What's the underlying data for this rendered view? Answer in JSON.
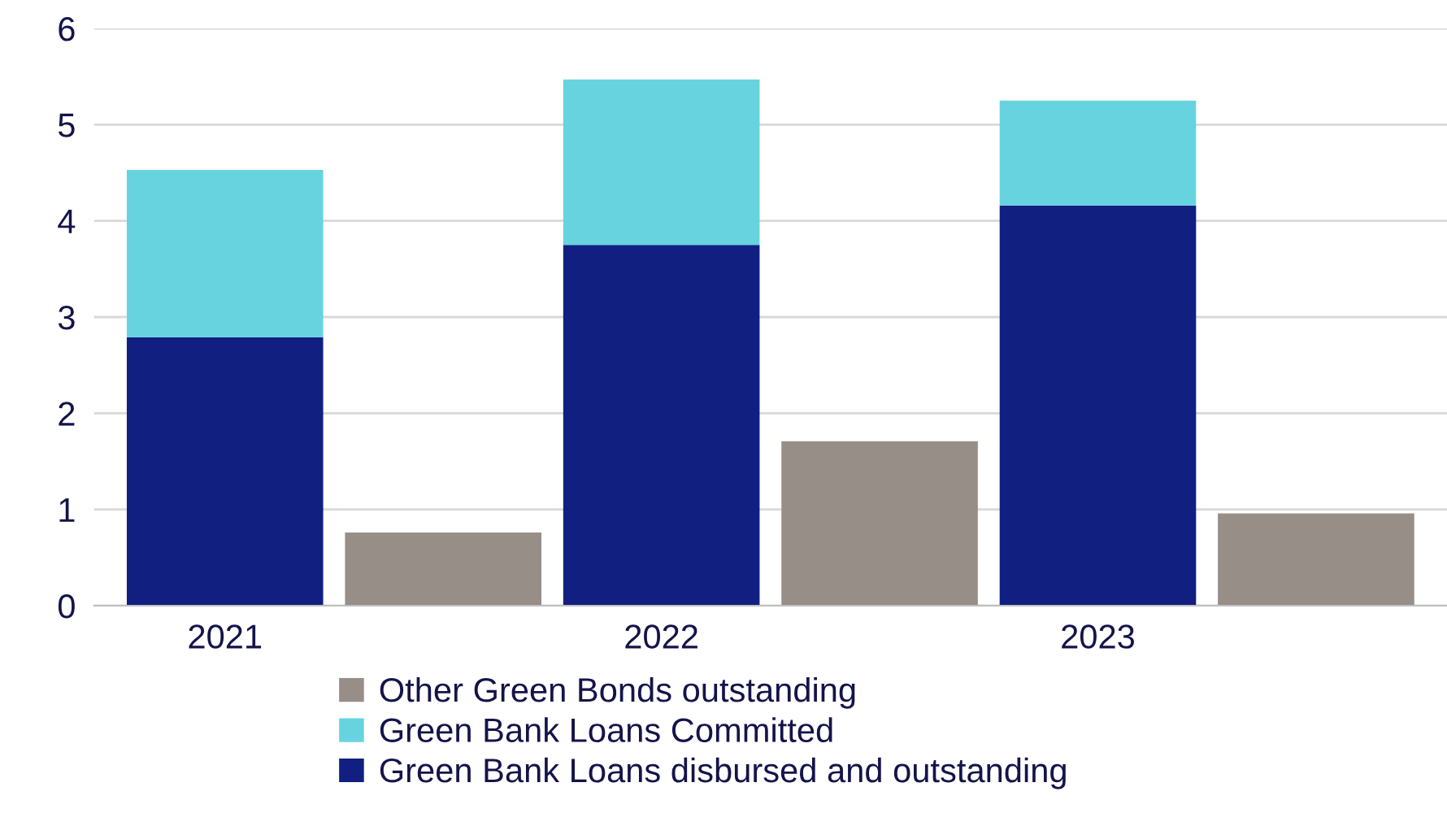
{
  "chart_data": {
    "type": "bar",
    "stacked": true,
    "categories": [
      "2021",
      null,
      "2022",
      null,
      "2023",
      null
    ],
    "series": [
      {
        "name": "Green Bank Loans disbursed and outstanding",
        "color": "#101f80",
        "values": [
          2.79,
          null,
          3.75,
          null,
          4.16,
          null
        ]
      },
      {
        "name": "Green Bank Loans Committed",
        "color": "#66d3df",
        "values": [
          1.74,
          null,
          1.72,
          null,
          1.09,
          null
        ]
      },
      {
        "name": "Other Green Bonds outstanding",
        "color": "#968e87",
        "values": [
          null,
          0.76,
          null,
          1.71,
          null,
          0.96
        ]
      }
    ],
    "ylim": [
      0,
      6
    ],
    "yticks": [
      0,
      1,
      2,
      3,
      4,
      5,
      6
    ],
    "grid": "y",
    "legend": "bottom"
  }
}
